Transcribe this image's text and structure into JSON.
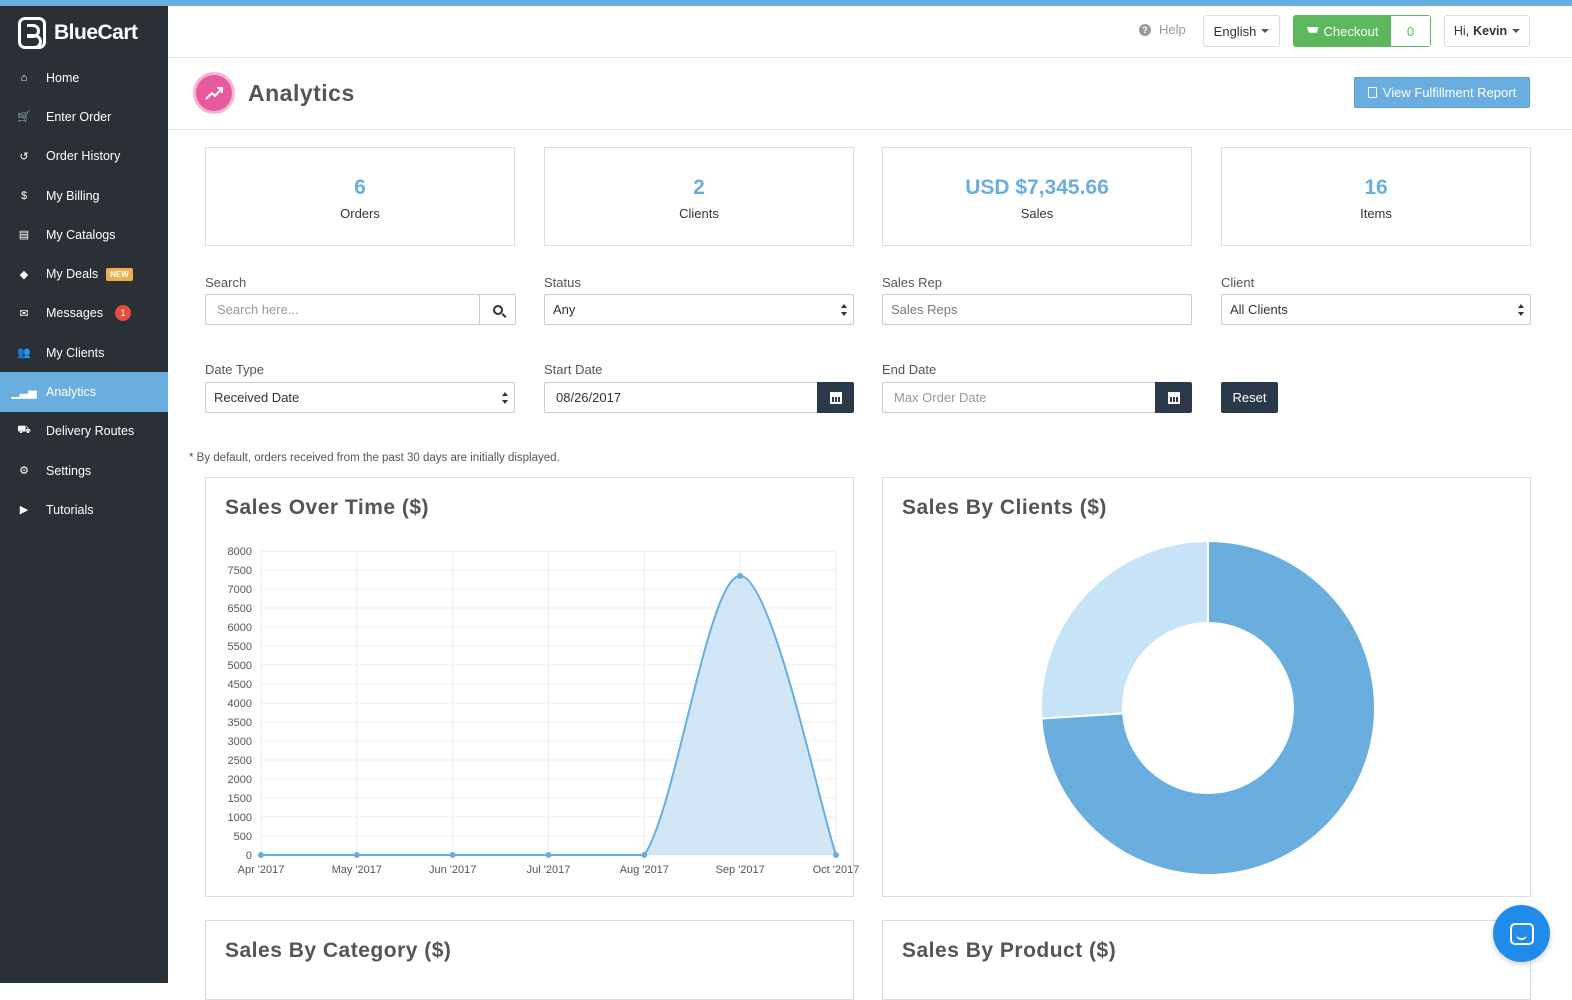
{
  "app": {
    "name": "BlueCart"
  },
  "sidebar": {
    "items": [
      {
        "label": "Home",
        "icon": "home-icon",
        "glyph": "⌂"
      },
      {
        "label": "Enter Order",
        "icon": "cart-icon",
        "glyph": "🛒"
      },
      {
        "label": "Order History",
        "icon": "history-icon",
        "glyph": "↺"
      },
      {
        "label": "My Billing",
        "icon": "dollar-icon",
        "glyph": "$"
      },
      {
        "label": "My Catalogs",
        "icon": "catalog-icon",
        "glyph": "▤"
      },
      {
        "label": "My Deals",
        "icon": "tag-icon",
        "glyph": "◆",
        "badge": "NEW"
      },
      {
        "label": "Messages",
        "icon": "envelope-icon",
        "glyph": "✉",
        "count": "1"
      },
      {
        "label": "My Clients",
        "icon": "users-icon",
        "glyph": "👥"
      },
      {
        "label": "Analytics",
        "icon": "bar-chart-icon",
        "glyph": "▁▃▅",
        "active": true
      },
      {
        "label": "Delivery Routes",
        "icon": "truck-icon",
        "glyph": "⛟"
      },
      {
        "label": "Settings",
        "icon": "gear-icon",
        "glyph": "⚙"
      },
      {
        "label": "Tutorials",
        "icon": "play-circle-icon",
        "glyph": "▶"
      }
    ]
  },
  "topbar": {
    "help": "Help",
    "language": "English",
    "checkout_label": "Checkout",
    "checkout_count": "0",
    "greeting": "Hi,",
    "user": "Kevin"
  },
  "header": {
    "title": "Analytics",
    "report_button": "View Fulfillment Report"
  },
  "stats": [
    {
      "value": "6",
      "label": "Orders"
    },
    {
      "value": "2",
      "label": "Clients"
    },
    {
      "value": "USD $7,345.66",
      "label": "Sales"
    },
    {
      "value": "16",
      "label": "Items"
    }
  ],
  "filters": {
    "search_label": "Search",
    "search_placeholder": "Search here...",
    "status_label": "Status",
    "status_value": "Any",
    "sales_rep_label": "Sales Rep",
    "sales_rep_placeholder": "Sales Reps",
    "client_label": "Client",
    "client_value": "All Clients",
    "date_type_label": "Date Type",
    "date_type_value": "Received Date",
    "start_date_label": "Start Date",
    "start_date_value": "08/26/2017",
    "end_date_label": "End Date",
    "end_date_placeholder": "Max Order Date",
    "reset": "Reset"
  },
  "note": "* By default, orders received from the past 30 days are initially displayed.",
  "panels": {
    "sales_over_time": "Sales Over Time ($)",
    "sales_by_clients": "Sales By Clients ($)",
    "sales_by_category": "Sales By Category ($)",
    "sales_by_product": "Sales By Product ($)"
  },
  "chart_data": [
    {
      "type": "area",
      "title": "Sales Over Time ($)",
      "categories": [
        "Apr '2017",
        "May '2017",
        "Jun '2017",
        "Jul '2017",
        "Aug '2017",
        "Sep '2017",
        "Oct '2017"
      ],
      "values": [
        0,
        0,
        0,
        0,
        0,
        7345.66,
        0
      ],
      "yticks": [
        0,
        500,
        1000,
        1500,
        2000,
        2500,
        3000,
        3500,
        4000,
        4500,
        5000,
        5500,
        6000,
        6500,
        7000,
        7500,
        8000
      ],
      "ylim": [
        0,
        8000
      ],
      "grid": true,
      "color": "#6aaee0",
      "fill": "#c9e2f5"
    },
    {
      "type": "pie",
      "title": "Sales By Clients ($)",
      "donut": true,
      "slices": [
        {
          "value": 0.74,
          "color": "#6aaee0"
        },
        {
          "value": 0.26,
          "color": "#c6e3f7"
        }
      ]
    }
  ],
  "colors": {
    "accent": "#6aaee0",
    "sidebar": "#2b3036",
    "success": "#5cb85c",
    "dark_button": "#2b3a4a"
  }
}
